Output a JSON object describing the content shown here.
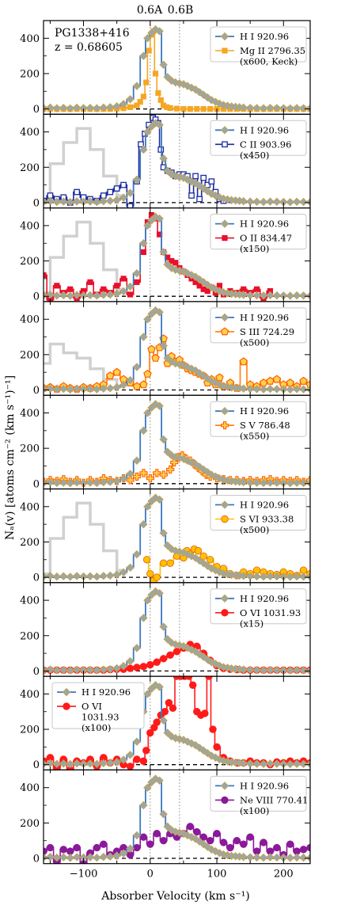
{
  "chart_data": {
    "type": "line",
    "object_label": "PG1338+416",
    "redshift_label": "z = 0.68605",
    "xlabel": "Absorber Velocity (km s⁻¹)",
    "ylabel": "Nₐ(v) [atoms cm⁻² (km s⁻¹)⁻¹]",
    "xlim": [
      -160,
      240
    ],
    "ylim": [
      -30,
      500
    ],
    "x_ticks": [
      -100,
      0,
      100,
      200
    ],
    "y_ticks": [
      0,
      200,
      400
    ],
    "components": [
      {
        "label": "0.6A",
        "x": 0
      },
      {
        "label": "0.6B",
        "x": 44
      }
    ],
    "reference": {
      "name": "H I 920.96",
      "color": "#3a78c2",
      "marker_color": "#9aa7a9",
      "x": [
        -160,
        -150,
        -140,
        -130,
        -120,
        -110,
        -100,
        -90,
        -80,
        -70,
        -60,
        -50,
        -40,
        -30,
        -20,
        -10,
        -4,
        2,
        8,
        14,
        20,
        26,
        32,
        38,
        44,
        50,
        56,
        62,
        68,
        74,
        80,
        86,
        92,
        98,
        104,
        110,
        116,
        122,
        128,
        134,
        140,
        150,
        160,
        170,
        180,
        190,
        200,
        210,
        220,
        230,
        240
      ],
      "values": [
        5,
        8,
        4,
        6,
        3,
        7,
        5,
        6,
        4,
        8,
        10,
        15,
        28,
        55,
        130,
        300,
        400,
        430,
        450,
        440,
        250,
        180,
        160,
        150,
        145,
        140,
        130,
        120,
        110,
        95,
        80,
        65,
        50,
        40,
        30,
        22,
        18,
        14,
        12,
        10,
        8,
        6,
        5,
        4,
        6,
        5,
        4,
        3,
        5,
        4,
        3
      ]
    },
    "panels": [
      {
        "series_name": "Mg II 2796.35",
        "scale_label": "(x600, Keck)",
        "color": "#f5a623",
        "marker": "square",
        "ghost": false,
        "x": [
          -160,
          -150,
          -140,
          -130,
          -120,
          -110,
          -100,
          -90,
          -80,
          -70,
          -60,
          -50,
          -40,
          -30,
          -20,
          -15,
          -10,
          -6,
          -2,
          2,
          5,
          8,
          12,
          16,
          20,
          25,
          30,
          40,
          50,
          60,
          70,
          80,
          90,
          100,
          110,
          120,
          130,
          140,
          150,
          160,
          170,
          180,
          190,
          200,
          210,
          220,
          230,
          240
        ],
        "values": [
          0,
          0,
          0,
          0,
          0,
          0,
          0,
          0,
          0,
          0,
          0,
          2,
          4,
          10,
          20,
          40,
          70,
          150,
          330,
          420,
          440,
          200,
          90,
          50,
          20,
          10,
          5,
          2,
          0,
          0,
          0,
          0,
          0,
          0,
          0,
          0,
          0,
          0,
          0,
          0,
          0,
          0,
          0,
          0,
          0,
          0,
          0,
          0
        ]
      },
      {
        "series_name": "C II 903.96",
        "scale_label": "(x450)",
        "color": "#1a2aa0",
        "marker": "square-open",
        "ghost": true,
        "x": [
          -160,
          -150,
          -140,
          -130,
          -120,
          -110,
          -100,
          -90,
          -80,
          -70,
          -60,
          -50,
          -40,
          -30,
          -20,
          -14,
          -8,
          -2,
          4,
          8,
          12,
          16,
          20,
          26,
          32,
          38,
          44,
          50,
          56,
          62,
          68,
          74,
          80,
          86,
          92,
          98,
          104,
          110
        ],
        "values": [
          10,
          40,
          20,
          30,
          0,
          60,
          30,
          20,
          10,
          40,
          60,
          80,
          100,
          -20,
          120,
          330,
          390,
          440,
          480,
          470,
          450,
          300,
          200,
          180,
          170,
          150,
          160,
          160,
          150,
          40,
          150,
          20,
          140,
          100,
          120,
          60,
          20,
          10
        ]
      },
      {
        "series_name": "O II 834.47",
        "scale_label": "(x150)",
        "color": "#e8102a",
        "marker": "square",
        "ghost": true,
        "x": [
          -160,
          -150,
          -140,
          -130,
          -120,
          -110,
          -100,
          -90,
          -80,
          -70,
          -60,
          -50,
          -40,
          -30,
          -20,
          -10,
          -4,
          2,
          8,
          14,
          20,
          26,
          32,
          38,
          44,
          50,
          56,
          62,
          68,
          74,
          80,
          86,
          92,
          98,
          104,
          110,
          120,
          130,
          140,
          150,
          160,
          170,
          180
        ],
        "values": [
          120,
          -20,
          60,
          20,
          40,
          -10,
          30,
          80,
          10,
          40,
          20,
          60,
          100,
          10,
          80,
          250,
          420,
          460,
          440,
          350,
          250,
          220,
          200,
          190,
          160,
          140,
          120,
          100,
          80,
          60,
          40,
          30,
          50,
          20,
          60,
          10,
          30,
          20,
          40,
          20,
          40,
          -10,
          30
        ]
      },
      {
        "series_name": "S III 724.29",
        "scale_label": "(x500)",
        "color": "#ff7f0e",
        "marker": "pentagon",
        "ghost": true,
        "x": [
          -160,
          -150,
          -140,
          -130,
          -120,
          -110,
          -100,
          -90,
          -80,
          -70,
          -60,
          -50,
          -40,
          -30,
          -20,
          -10,
          -4,
          2,
          8,
          14,
          20,
          26,
          32,
          38,
          44,
          50,
          56,
          62,
          68,
          74,
          80,
          86,
          92,
          98,
          104,
          110,
          120,
          130,
          140,
          150,
          160,
          170,
          180,
          190,
          200,
          210,
          220,
          230,
          240
        ],
        "values": [
          10,
          15,
          5,
          20,
          10,
          5,
          15,
          10,
          20,
          30,
          80,
          100,
          60,
          40,
          20,
          30,
          90,
          230,
          180,
          240,
          290,
          150,
          190,
          160,
          170,
          140,
          120,
          110,
          100,
          90,
          80,
          40,
          60,
          30,
          70,
          20,
          40,
          10,
          160,
          30,
          20,
          40,
          50,
          60,
          30,
          40,
          20,
          50,
          30
        ]
      },
      {
        "series_name": "S V 786.48",
        "scale_label": "(x550)",
        "color": "#ff7f0e",
        "marker": "plus",
        "ghost": false,
        "x": [
          -160,
          -150,
          -140,
          -130,
          -120,
          -110,
          -100,
          -90,
          -80,
          -70,
          -60,
          -50,
          -40,
          -30,
          -20,
          -10,
          0,
          10,
          20,
          30,
          36,
          42,
          48,
          54,
          60,
          66,
          72,
          78,
          84,
          90,
          100,
          110,
          120,
          130,
          140,
          150,
          160,
          170,
          180,
          190,
          200,
          210,
          220,
          230,
          240
        ],
        "values": [
          10,
          20,
          15,
          25,
          10,
          20,
          5,
          20,
          10,
          30,
          20,
          15,
          30,
          20,
          40,
          60,
          30,
          60,
          50,
          80,
          120,
          150,
          160,
          140,
          130,
          110,
          90,
          70,
          50,
          40,
          30,
          25,
          20,
          20,
          15,
          20,
          15,
          20,
          25,
          15,
          20,
          15,
          20,
          10,
          20
        ]
      },
      {
        "series_name": "S VI 933.38",
        "scale_label": "(x500)",
        "color": "#ffc000",
        "marker": "circle",
        "ghost": true,
        "x": [
          -5,
          0,
          5,
          10,
          20,
          30,
          40,
          50,
          55,
          60,
          66,
          72,
          80,
          90,
          100,
          110,
          120,
          130,
          140,
          150,
          160,
          170,
          180,
          190,
          200,
          210,
          220,
          230,
          240
        ],
        "values": [
          100,
          20,
          -20,
          0,
          80,
          80,
          120,
          110,
          150,
          130,
          160,
          150,
          120,
          100,
          60,
          50,
          20,
          10,
          30,
          20,
          40,
          30,
          20,
          15,
          30,
          20,
          10,
          40,
          20
        ]
      },
      {
        "series_name": "O VI 1031.93",
        "scale_label": "(x15)",
        "color": "#ff1a1a",
        "marker": "circle",
        "ghost": false,
        "x": [
          -160,
          -150,
          -140,
          -130,
          -120,
          -110,
          -100,
          -90,
          -80,
          -70,
          -60,
          -50,
          -40,
          -30,
          -20,
          -10,
          0,
          10,
          20,
          30,
          40,
          50,
          60,
          70,
          80,
          90,
          100,
          110,
          120,
          130,
          140,
          150,
          160,
          170,
          180,
          190,
          200,
          210,
          220,
          230,
          240
        ],
        "values": [
          5,
          5,
          5,
          5,
          5,
          5,
          5,
          5,
          5,
          5,
          8,
          10,
          10,
          15,
          20,
          25,
          35,
          50,
          70,
          90,
          110,
          130,
          150,
          140,
          100,
          60,
          30,
          15,
          10,
          8,
          5,
          5,
          5,
          5,
          5,
          5,
          5,
          5,
          5,
          5,
          5
        ]
      },
      {
        "series_name": "O VI\n1031.93\n(x100)",
        "scale_label": "",
        "color": "#ff1a1a",
        "marker": "circle",
        "ghost": false,
        "x": [
          -160,
          -150,
          -140,
          -130,
          -120,
          -110,
          -100,
          -90,
          -80,
          -70,
          -60,
          -50,
          -40,
          -30,
          -20,
          -10,
          -6,
          0,
          6,
          10,
          16,
          22,
          28,
          34,
          40,
          46,
          52,
          58,
          64,
          70,
          76,
          82,
          88,
          94,
          100,
          110,
          120,
          130,
          140,
          150,
          160,
          170,
          180,
          190,
          200,
          210,
          220,
          230,
          240
        ],
        "values": [
          20,
          40,
          -20,
          30,
          -40,
          20,
          10,
          30,
          -10,
          40,
          10,
          30,
          0,
          -10,
          30,
          20,
          80,
          180,
          210,
          240,
          280,
          300,
          350,
          320,
          500,
          500,
          500,
          500,
          450,
          300,
          280,
          290,
          500,
          200,
          100,
          40,
          20,
          10,
          10,
          20,
          10,
          10,
          0,
          15,
          10,
          20,
          10,
          20,
          10
        ]
      },
      {
        "series_name": "Ne VIII 770.41",
        "scale_label": "(x100)",
        "color": "#8a1a9a",
        "marker": "circle",
        "ghost": false,
        "x": [
          -160,
          -150,
          -140,
          -130,
          -120,
          -110,
          -100,
          -90,
          -80,
          -70,
          -60,
          -50,
          -40,
          -30,
          -20,
          -10,
          0,
          10,
          20,
          30,
          40,
          50,
          60,
          70,
          80,
          90,
          100,
          110,
          120,
          130,
          140,
          150,
          160,
          170,
          180,
          190,
          200,
          210,
          220,
          230,
          240
        ],
        "values": [
          40,
          60,
          -20,
          50,
          40,
          60,
          -30,
          30,
          60,
          80,
          20,
          40,
          60,
          20,
          60,
          120,
          80,
          140,
          100,
          140,
          120,
          140,
          180,
          150,
          120,
          100,
          140,
          90,
          60,
          100,
          80,
          120,
          40,
          90,
          40,
          60,
          20,
          80,
          40,
          50,
          60
        ]
      }
    ]
  }
}
